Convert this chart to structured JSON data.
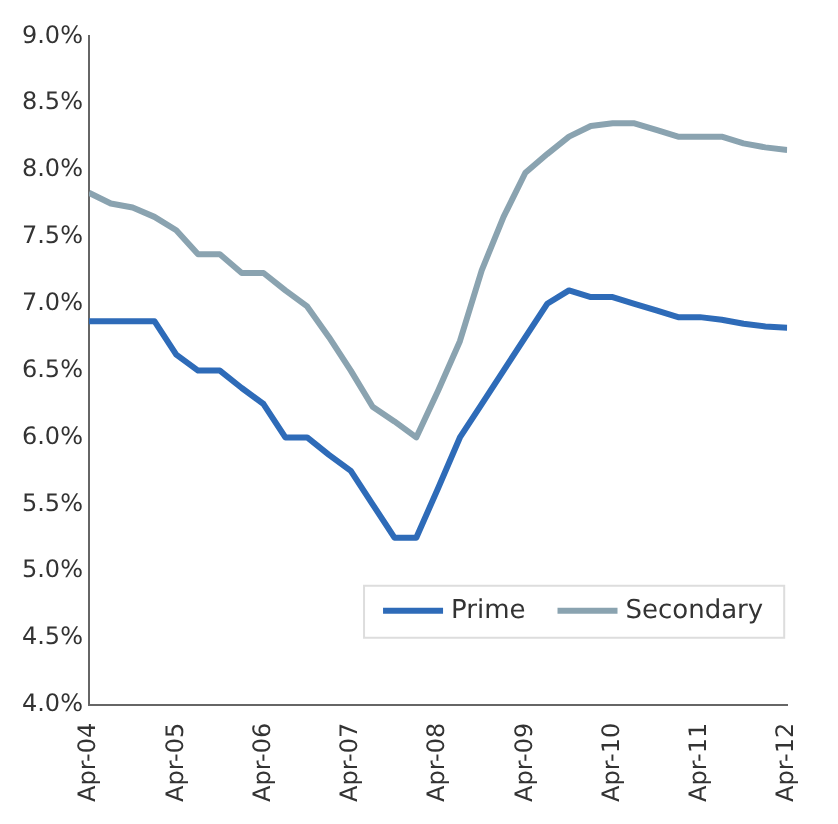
{
  "chart_data": {
    "type": "line",
    "x": [
      "2004-04",
      "2004-07",
      "2004-10",
      "2005-01",
      "2005-04",
      "2005-07",
      "2005-10",
      "2006-01",
      "2006-04",
      "2006-07",
      "2006-10",
      "2007-01",
      "2007-04",
      "2007-07",
      "2007-10",
      "2008-01",
      "2008-04",
      "2008-07",
      "2008-10",
      "2009-01",
      "2009-04",
      "2009-07",
      "2009-10",
      "2010-01",
      "2010-04",
      "2010-07",
      "2010-10",
      "2011-01",
      "2011-04",
      "2011-07",
      "2011-10",
      "2012-01",
      "2012-04"
    ],
    "series": [
      {
        "name": "Prime",
        "color": "#2e6bb8",
        "values": [
          6.87,
          6.87,
          6.87,
          6.87,
          6.62,
          6.5,
          6.5,
          6.37,
          6.25,
          6.0,
          6.0,
          5.87,
          5.75,
          5.5,
          5.25,
          5.25,
          5.62,
          6.0,
          6.25,
          6.5,
          6.75,
          7.0,
          7.1,
          7.05,
          7.05,
          7.0,
          6.95,
          6.9,
          6.9,
          6.88,
          6.85,
          6.83,
          6.82
        ]
      },
      {
        "name": "Secondary",
        "color": "#8aa3b0",
        "values": [
          7.83,
          7.75,
          7.72,
          7.65,
          7.55,
          7.37,
          7.37,
          7.23,
          7.23,
          7.1,
          6.98,
          6.75,
          6.5,
          6.23,
          6.12,
          6.0,
          6.35,
          6.72,
          7.25,
          7.65,
          7.98,
          8.12,
          8.25,
          8.33,
          8.35,
          8.35,
          8.3,
          8.25,
          8.25,
          8.25,
          8.2,
          8.17,
          8.15
        ]
      }
    ],
    "xlim": [
      "2004-04",
      "2012-04"
    ],
    "xticks": [
      {
        "value": "2004-04",
        "label": "Apr-04"
      },
      {
        "value": "2005-04",
        "label": "Apr-05"
      },
      {
        "value": "2006-04",
        "label": "Apr-06"
      },
      {
        "value": "2007-04",
        "label": "Apr-07"
      },
      {
        "value": "2008-04",
        "label": "Apr-08"
      },
      {
        "value": "2009-04",
        "label": "Apr-09"
      },
      {
        "value": "2010-04",
        "label": "Apr-10"
      },
      {
        "value": "2011-04",
        "label": "Apr-11"
      },
      {
        "value": "2012-04",
        "label": "Apr-12"
      }
    ],
    "ylim": [
      4,
      9
    ],
    "yticks": [
      {
        "value": 4,
        "label": "4.0%"
      },
      {
        "value": 4.5,
        "label": "4.5%"
      },
      {
        "value": 5,
        "label": "5.0%"
      },
      {
        "value": 5.5,
        "label": "5.5%"
      },
      {
        "value": 6,
        "label": "6.0%"
      },
      {
        "value": 6.5,
        "label": "6.5%"
      },
      {
        "value": 7,
        "label": "7.0%"
      },
      {
        "value": 7.5,
        "label": "7.5%"
      },
      {
        "value": 8,
        "label": "8.0%"
      },
      {
        "value": 8.5,
        "label": "8.5%"
      },
      {
        "value": 9,
        "label": "9.0%"
      }
    ],
    "grid": false,
    "legend": "bottom right",
    "marker": "none",
    "line_style": "solid"
  }
}
